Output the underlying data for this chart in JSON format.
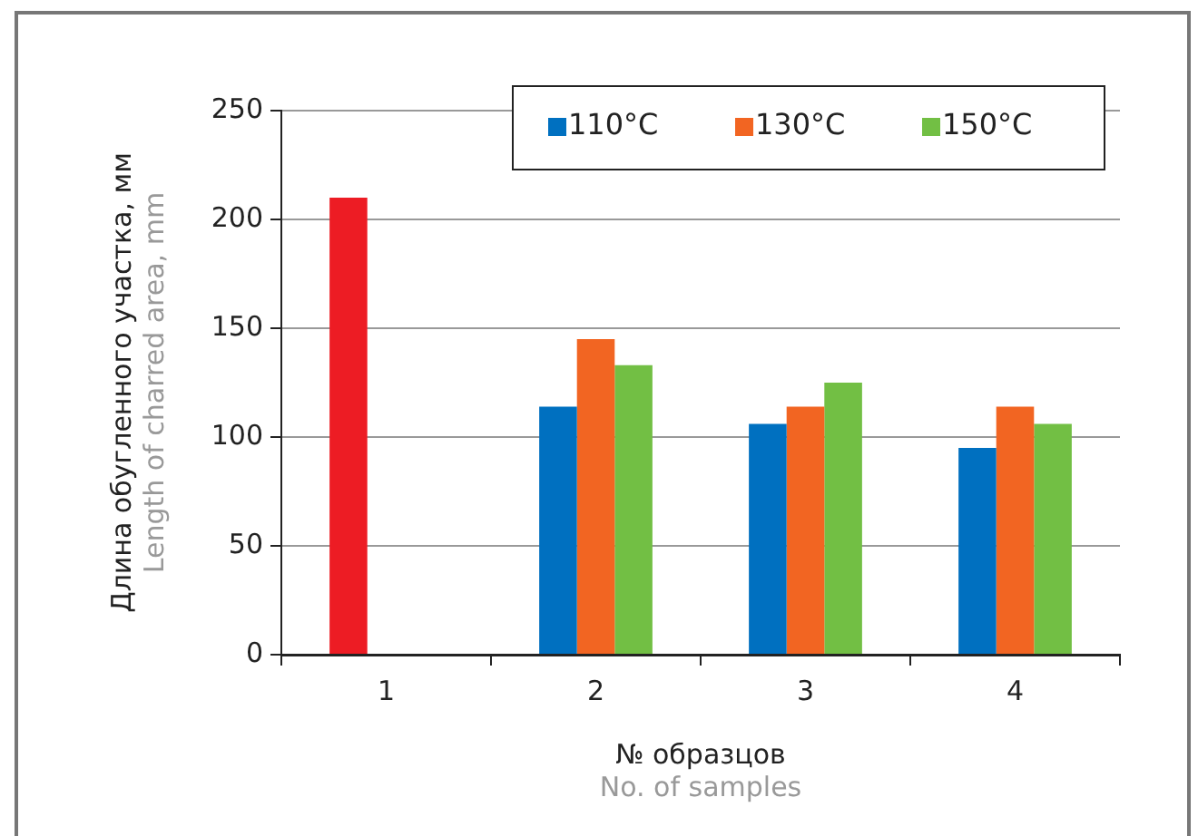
{
  "chart_data": {
    "type": "bar",
    "categories": [
      "1",
      "2",
      "3",
      "4"
    ],
    "series": [
      {
        "name": "110°C",
        "color": "#0070c0",
        "colors": [
          "#ed1c24",
          "#0070c0",
          "#0070c0",
          "#0070c0"
        ],
        "values": [
          210,
          114,
          106,
          95
        ]
      },
      {
        "name": "130°C",
        "color": "#f26522",
        "values": [
          null,
          145,
          114,
          114
        ]
      },
      {
        "name": "150°C",
        "color": "#72bf44",
        "values": [
          null,
          133,
          125,
          106
        ]
      }
    ],
    "xlabel": "№ образцов\nNo. of samples",
    "ylabel": "Длина обугленного участка, мм\nLength of charred area, mm",
    "ylim": [
      0,
      250
    ],
    "yticks": [
      0,
      50,
      100,
      150,
      200,
      250
    ],
    "grid": "y",
    "legend": "top right"
  }
}
